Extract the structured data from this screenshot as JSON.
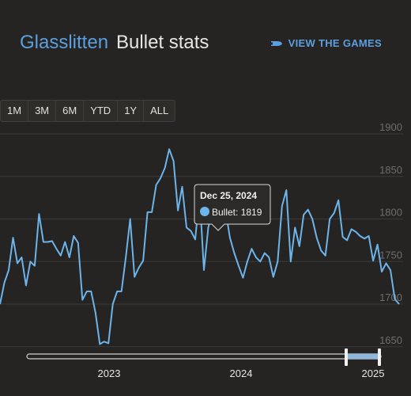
{
  "header": {
    "user": "Glasslitten",
    "title": "Bullet stats"
  },
  "view_games": {
    "label": "VIEW THE GAMES",
    "icon": "bullet-icon"
  },
  "range_buttons": [
    "1M",
    "3M",
    "6M",
    "YTD",
    "1Y",
    "ALL"
  ],
  "colors": {
    "accent": "#5b9fe0",
    "line": "#6cb4ea",
    "background": "#252422"
  },
  "tooltip": {
    "date": "Dec 25, 2024",
    "series": "Bullet",
    "value": "1819"
  },
  "chart_data": {
    "type": "line",
    "series": [
      {
        "name": "Bullet",
        "values": [
          1700,
          1725,
          1740,
          1778,
          1748,
          1755,
          1722,
          1750,
          1745,
          1806,
          1773,
          1773,
          1774,
          1765,
          1757,
          1773,
          1755,
          1780,
          1772,
          1705,
          1715,
          1715,
          1690,
          1653,
          1656,
          1654,
          1700,
          1715,
          1715,
          1755,
          1800,
          1732,
          1743,
          1751,
          1808,
          1808,
          1840,
          1848,
          1860,
          1882,
          1868,
          1810,
          1838,
          1790,
          1786,
          1776,
          1829,
          1740,
          1790,
          1810,
          1818,
          1813,
          1810,
          1778,
          1760,
          1745,
          1731,
          1750,
          1765,
          1755,
          1750,
          1760,
          1755,
          1732,
          1750,
          1815,
          1834,
          1750,
          1790,
          1768,
          1805,
          1811,
          1800,
          1778,
          1763,
          1757,
          1800,
          1807,
          1822,
          1779,
          1775,
          1788,
          1785,
          1780,
          1777,
          1780,
          1751,
          1770,
          1738,
          1748,
          1740,
          1706,
          1700
        ]
      }
    ],
    "x_range": [
      "2022-06",
      "2025-02"
    ],
    "x_ticks": [
      "2023",
      "2024",
      "2025"
    ],
    "y_ticks": [
      "1650",
      "1700",
      "1750",
      "1800",
      "1850",
      "1900"
    ],
    "ylim": [
      1640,
      1900
    ],
    "grid": true,
    "tooltip_point": {
      "date": "2024-12-25",
      "value": 1819
    }
  }
}
